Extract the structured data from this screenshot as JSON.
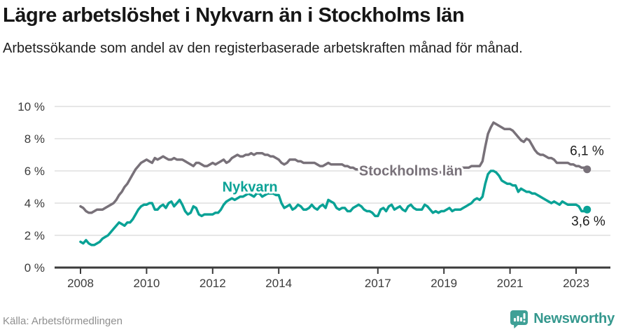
{
  "header": {
    "title": "Lägre arbetslöshet i Nykvarn än i Stockholms län",
    "subtitle": "Arbetssökande som andel av den registerbaserade arbetskraften månad för månad."
  },
  "footer": {
    "source": "Källa: Arbetsförmedlingen",
    "brand": "Newsworthy",
    "brand_color": "#3fa096"
  },
  "colors": {
    "grid": "#cfcfcf",
    "axis": "#3b3b3b",
    "tick_text": "#3b3b3b",
    "end_label_text": "#1d1d1d",
    "background": "#ffffff"
  },
  "chart_data": {
    "type": "line",
    "title": "Lägre arbetslöshet i Nykvarn än i Stockholms län",
    "subtitle": "Arbetssökande som andel av den registerbaserade arbetskraften månad för månad.",
    "x_start": 2008.0,
    "x_months_per_point": 1,
    "xlim": [
      2008.0,
      2023.4167
    ],
    "ylim": [
      0,
      10
    ],
    "yticks": [
      0,
      2,
      4,
      6,
      8,
      10
    ],
    "ytick_suffix": " %",
    "xticks": [
      2008,
      2010,
      2012,
      2014,
      2017,
      2019,
      2021,
      2023
    ],
    "grid": true,
    "legend_position": "inline-labels",
    "series": [
      {
        "name": "Stockholms län",
        "color": "#787179",
        "end_label": "6,1 %",
        "end_label_offset": [
          24,
          -20
        ],
        "label_pos": {
          "year": 2016.43,
          "value": 5.72,
          "anchor": "start"
        },
        "values": [
          3.8,
          3.7,
          3.5,
          3.4,
          3.4,
          3.5,
          3.6,
          3.6,
          3.6,
          3.7,
          3.8,
          3.9,
          4.0,
          4.2,
          4.5,
          4.7,
          5.0,
          5.2,
          5.5,
          5.8,
          6.1,
          6.3,
          6.5,
          6.6,
          6.7,
          6.6,
          6.5,
          6.8,
          6.7,
          6.8,
          6.9,
          6.8,
          6.7,
          6.7,
          6.8,
          6.7,
          6.7,
          6.7,
          6.6,
          6.5,
          6.4,
          6.3,
          6.5,
          6.5,
          6.4,
          6.3,
          6.3,
          6.4,
          6.5,
          6.4,
          6.5,
          6.6,
          6.7,
          6.5,
          6.6,
          6.8,
          6.9,
          7.0,
          6.9,
          6.9,
          7.0,
          7.0,
          7.1,
          7.0,
          7.1,
          7.1,
          7.1,
          7.0,
          7.0,
          6.9,
          6.9,
          6.8,
          6.7,
          6.5,
          6.4,
          6.5,
          6.7,
          6.7,
          6.7,
          6.6,
          6.6,
          6.5,
          6.5,
          6.5,
          6.5,
          6.5,
          6.4,
          6.3,
          6.3,
          6.4,
          6.5,
          6.4,
          6.4,
          6.4,
          6.4,
          6.4,
          6.3,
          6.3,
          6.2,
          6.2,
          6.1,
          6.1,
          6.2,
          6.2,
          6.1,
          6.1,
          6.0,
          6.0,
          6.0,
          6.0,
          6.1,
          6.0,
          6.0,
          6.1,
          6.1,
          6.0,
          6.0,
          5.9,
          5.9,
          6.0,
          6.0,
          5.9,
          5.9,
          5.8,
          5.8,
          5.9,
          5.9,
          5.8,
          5.8,
          5.8,
          5.9,
          5.9,
          5.9,
          6.0,
          6.0,
          6.0,
          6.1,
          6.1,
          6.2,
          6.2,
          6.2,
          6.2,
          6.3,
          6.3,
          6.3,
          6.3,
          6.6,
          7.5,
          8.3,
          8.7,
          9.0,
          8.9,
          8.8,
          8.7,
          8.6,
          8.6,
          8.6,
          8.5,
          8.3,
          8.1,
          7.9,
          7.8,
          8.0,
          7.9,
          7.6,
          7.3,
          7.1,
          7.0,
          7.0,
          6.9,
          6.8,
          6.8,
          6.7,
          6.5,
          6.5,
          6.5,
          6.5,
          6.5,
          6.4,
          6.4,
          6.3,
          6.3,
          6.2,
          6.2,
          6.1
        ]
      },
      {
        "name": "Nykvarn",
        "color": "#0aa296",
        "end_label": "3,6 %",
        "end_label_offset": [
          26,
          23
        ],
        "label_pos": {
          "year": 2013.13,
          "value": 4.72,
          "anchor": "middle"
        },
        "values": [
          1.6,
          1.5,
          1.7,
          1.5,
          1.4,
          1.4,
          1.5,
          1.6,
          1.8,
          1.9,
          2.0,
          2.2,
          2.4,
          2.6,
          2.8,
          2.7,
          2.6,
          2.8,
          2.8,
          3.0,
          3.3,
          3.6,
          3.8,
          3.9,
          3.9,
          4.0,
          4.0,
          3.6,
          3.6,
          3.8,
          3.9,
          3.7,
          4.0,
          4.1,
          3.8,
          4.0,
          4.2,
          3.9,
          3.5,
          3.3,
          3.4,
          3.8,
          3.7,
          3.3,
          3.2,
          3.3,
          3.3,
          3.3,
          3.3,
          3.4,
          3.4,
          3.6,
          3.9,
          4.1,
          4.2,
          4.3,
          4.2,
          4.3,
          4.4,
          4.4,
          4.5,
          4.6,
          4.5,
          4.4,
          4.6,
          4.6,
          4.4,
          4.5,
          4.6,
          4.6,
          4.6,
          4.5,
          4.5,
          4.0,
          3.7,
          3.8,
          3.9,
          3.6,
          3.7,
          3.9,
          3.8,
          3.6,
          3.6,
          3.7,
          3.9,
          3.7,
          3.6,
          3.8,
          3.9,
          3.7,
          4.2,
          4.1,
          4.0,
          3.7,
          3.6,
          3.7,
          3.7,
          3.5,
          3.5,
          3.7,
          3.8,
          3.9,
          3.8,
          3.6,
          3.5,
          3.5,
          3.4,
          3.2,
          3.2,
          3.6,
          3.7,
          3.5,
          3.8,
          3.9,
          3.6,
          3.7,
          3.8,
          3.6,
          3.5,
          3.8,
          3.9,
          3.7,
          3.6,
          3.6,
          3.6,
          3.9,
          3.8,
          3.6,
          3.4,
          3.5,
          3.4,
          3.5,
          3.5,
          3.6,
          3.7,
          3.5,
          3.6,
          3.6,
          3.6,
          3.7,
          3.8,
          3.9,
          4.0,
          4.2,
          4.3,
          4.2,
          4.4,
          5.2,
          5.8,
          6.0,
          6.0,
          5.9,
          5.7,
          5.4,
          5.3,
          5.2,
          5.2,
          5.1,
          5.1,
          4.7,
          4.9,
          4.8,
          4.7,
          4.7,
          4.6,
          4.6,
          4.5,
          4.4,
          4.3,
          4.2,
          4.1,
          4.0,
          4.1,
          4.0,
          3.9,
          4.1,
          4.0,
          3.9,
          3.9,
          3.9,
          3.9,
          3.8,
          3.5,
          3.5,
          3.6
        ]
      }
    ]
  }
}
